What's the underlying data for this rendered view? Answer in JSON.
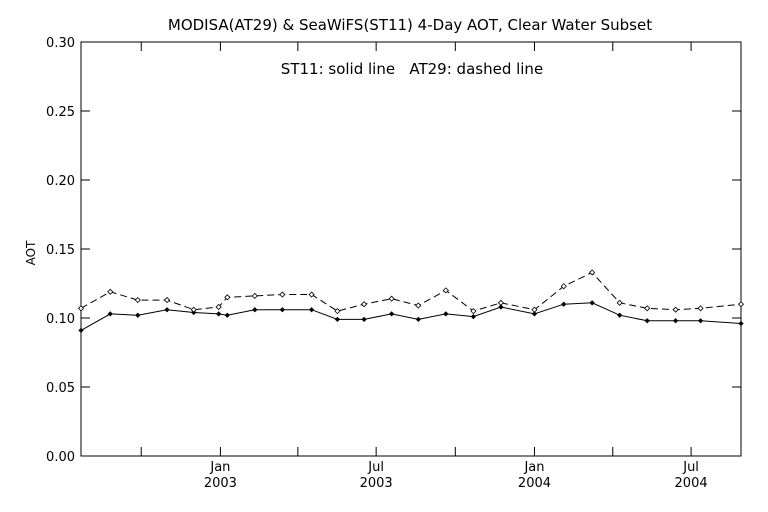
{
  "chart_data": {
    "type": "line",
    "title": "MODISA(AT29) & SeaWiFS(ST11) 4-Day AOT, Clear Water Subset",
    "annotation": "ST11: solid line   AT29: dashed line",
    "ylabel": "AOT",
    "xlabel": "",
    "xlim": [
      "2002-07-23",
      "2004-08-28"
    ],
    "ylim": [
      0.0,
      0.3
    ],
    "yticks": [
      {
        "value": 0.0,
        "label": "0.00"
      },
      {
        "value": 0.05,
        "label": "0.05"
      },
      {
        "value": 0.1,
        "label": "0.10"
      },
      {
        "value": 0.15,
        "label": "0.15"
      },
      {
        "value": 0.2,
        "label": "0.20"
      },
      {
        "value": 0.25,
        "label": "0.25"
      },
      {
        "value": 0.3,
        "label": "0.30"
      }
    ],
    "xticks": [
      {
        "date": "2002-10-01",
        "label": ""
      },
      {
        "date": "2003-01-01",
        "label": "Jan",
        "sublabel": "2003"
      },
      {
        "date": "2003-04-01",
        "label": ""
      },
      {
        "date": "2003-07-01",
        "label": "Jul",
        "sublabel": "2003"
      },
      {
        "date": "2003-10-01",
        "label": ""
      },
      {
        "date": "2004-01-01",
        "label": "Jan",
        "sublabel": "2004"
      },
      {
        "date": "2004-04-01",
        "label": ""
      },
      {
        "date": "2004-07-01",
        "label": "Jul",
        "sublabel": "2004"
      }
    ],
    "grid": false,
    "series": [
      {
        "name": "ST11",
        "style": "solid",
        "color": "#000000",
        "points": [
          {
            "x": "2002-07-23",
            "y": 0.091
          },
          {
            "x": "2002-08-26",
            "y": 0.103
          },
          {
            "x": "2002-09-27",
            "y": 0.102
          },
          {
            "x": "2002-10-31",
            "y": 0.106
          },
          {
            "x": "2002-12-01",
            "y": 0.104
          },
          {
            "x": "2002-12-30",
            "y": 0.103
          },
          {
            "x": "2003-01-09",
            "y": 0.102
          },
          {
            "x": "2003-02-10",
            "y": 0.106
          },
          {
            "x": "2003-03-14",
            "y": 0.106
          },
          {
            "x": "2003-04-17",
            "y": 0.106
          },
          {
            "x": "2003-05-17",
            "y": 0.099
          },
          {
            "x": "2003-06-17",
            "y": 0.099
          },
          {
            "x": "2003-07-19",
            "y": 0.103
          },
          {
            "x": "2003-08-19",
            "y": 0.099
          },
          {
            "x": "2003-09-20",
            "y": 0.103
          },
          {
            "x": "2003-10-22",
            "y": 0.101
          },
          {
            "x": "2003-11-23",
            "y": 0.108
          },
          {
            "x": "2004-01-01",
            "y": 0.103
          },
          {
            "x": "2004-02-04",
            "y": 0.11
          },
          {
            "x": "2004-03-08",
            "y": 0.111
          },
          {
            "x": "2004-04-09",
            "y": 0.102
          },
          {
            "x": "2004-05-11",
            "y": 0.098
          },
          {
            "x": "2004-06-13",
            "y": 0.098
          },
          {
            "x": "2004-07-12",
            "y": 0.098
          },
          {
            "x": "2004-08-28",
            "y": 0.096
          }
        ]
      },
      {
        "name": "AT29",
        "style": "dashed",
        "color": "#000000",
        "points": [
          {
            "x": "2002-07-23",
            "y": 0.107
          },
          {
            "x": "2002-08-26",
            "y": 0.119
          },
          {
            "x": "2002-09-27",
            "y": 0.113
          },
          {
            "x": "2002-10-31",
            "y": 0.113
          },
          {
            "x": "2002-12-01",
            "y": 0.106
          },
          {
            "x": "2002-12-30",
            "y": 0.108
          },
          {
            "x": "2003-01-09",
            "y": 0.115
          },
          {
            "x": "2003-02-10",
            "y": 0.116
          },
          {
            "x": "2003-03-14",
            "y": 0.117
          },
          {
            "x": "2003-04-17",
            "y": 0.117
          },
          {
            "x": "2003-05-17",
            "y": 0.105
          },
          {
            "x": "2003-06-17",
            "y": 0.11
          },
          {
            "x": "2003-07-19",
            "y": 0.114
          },
          {
            "x": "2003-08-19",
            "y": 0.109
          },
          {
            "x": "2003-09-20",
            "y": 0.12
          },
          {
            "x": "2003-10-22",
            "y": 0.105
          },
          {
            "x": "2003-11-23",
            "y": 0.111
          },
          {
            "x": "2004-01-01",
            "y": 0.106
          },
          {
            "x": "2004-02-04",
            "y": 0.123
          },
          {
            "x": "2004-03-08",
            "y": 0.133
          },
          {
            "x": "2004-04-09",
            "y": 0.111
          },
          {
            "x": "2004-05-11",
            "y": 0.107
          },
          {
            "x": "2004-06-13",
            "y": 0.106
          },
          {
            "x": "2004-07-12",
            "y": 0.107
          },
          {
            "x": "2004-08-28",
            "y": 0.11
          }
        ]
      }
    ]
  }
}
